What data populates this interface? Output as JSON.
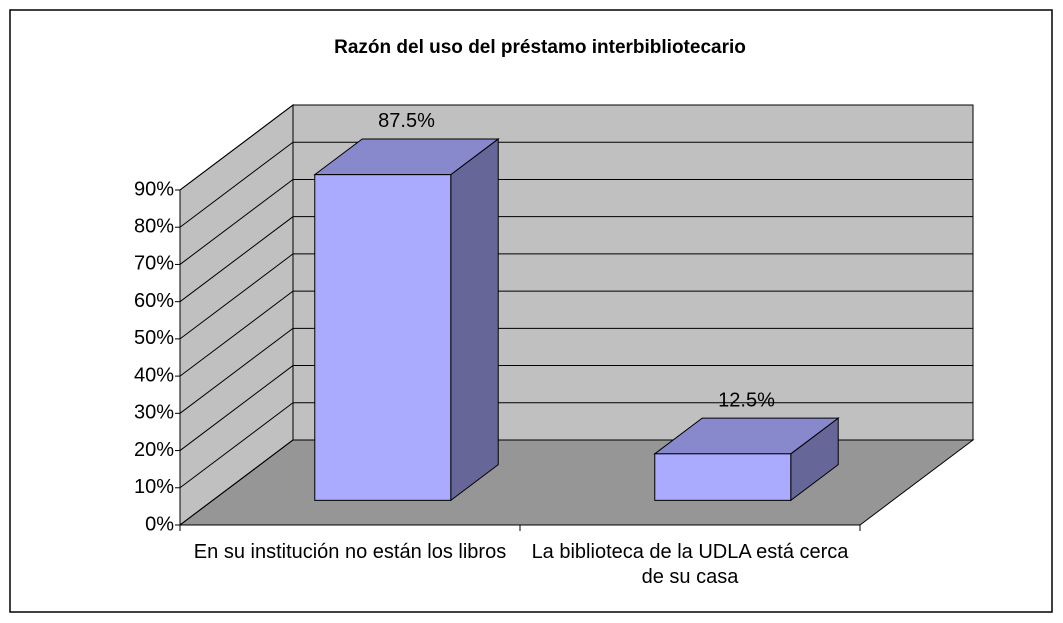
{
  "chart_data": {
    "type": "bar3d",
    "title": "Razón del uso del préstamo interbibliotecario",
    "categories": [
      "En su institución no están los libros",
      "La biblioteca de la UDLA está cerca de su casa"
    ],
    "values": [
      87.5,
      12.5
    ],
    "value_labels": [
      "87.5%",
      "12.5%"
    ],
    "color": "#aaaaff",
    "ylim": [
      0,
      90
    ],
    "yticks": [
      {
        "value": 0,
        "label": "0%"
      },
      {
        "value": 10,
        "label": "10%"
      },
      {
        "value": 20,
        "label": "20%"
      },
      {
        "value": 30,
        "label": "30%"
      },
      {
        "value": 40,
        "label": "40%"
      },
      {
        "value": 50,
        "label": "50%"
      },
      {
        "value": 60,
        "label": "60%"
      },
      {
        "value": 70,
        "label": "70%"
      },
      {
        "value": 80,
        "label": "80%"
      },
      {
        "value": 90,
        "label": "90%"
      }
    ],
    "grid": true
  }
}
